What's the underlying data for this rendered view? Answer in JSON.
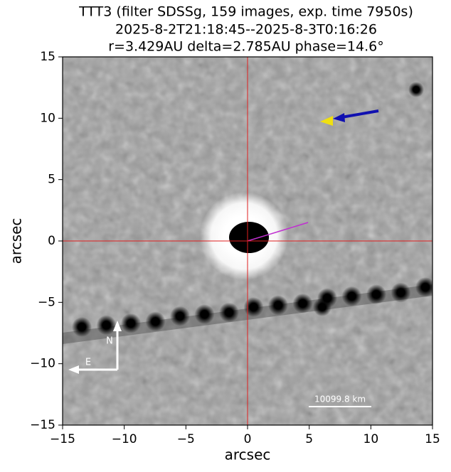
{
  "chart_data": {
    "type": "image",
    "title": [
      "TTT3 (filter SDSSg, 159 images, exp. time 7950s)",
      "2025-8-2T21:18:45--2025-8-3T0:16:26",
      "r=3.429AU delta=2.785AU phase=14.6°"
    ],
    "x_label": "arcsec",
    "y_label": "arcsec",
    "xlim": [
      -15,
      15
    ],
    "ylim": [
      -15,
      15
    ],
    "xticks": [
      {
        "value": -15,
        "label": "−15"
      },
      {
        "value": -10,
        "label": "−10"
      },
      {
        "value": -5,
        "label": "−5"
      },
      0,
      5,
      10,
      15
    ],
    "yticks": [
      {
        "value": -15,
        "label": "−15"
      },
      {
        "value": -10,
        "label": "−10"
      },
      {
        "value": -5,
        "label": "−5"
      },
      0,
      5,
      10,
      15
    ],
    "annotations": {
      "north": "N",
      "east": "E",
      "scale_bar": "10099.8 km"
    }
  }
}
